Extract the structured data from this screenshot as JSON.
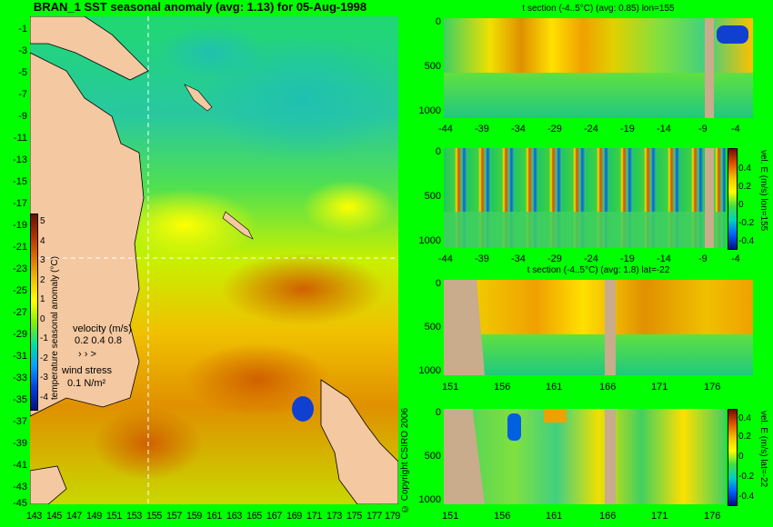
{
  "map": {
    "title": "BRAN_1 SST seasonal anomaly (avg: 1.13) for 05-Aug-1998",
    "y_ticks": [
      "-1",
      "-3",
      "-5",
      "-7",
      "-9",
      "-11",
      "-13",
      "-15",
      "-17",
      "-19",
      "-21",
      "-23",
      "-25",
      "-27",
      "-29",
      "-31",
      "-33",
      "-35",
      "-37",
      "-39",
      "-41",
      "-43",
      "-45"
    ],
    "x_ticks": [
      "143",
      "145",
      "147",
      "149",
      "151",
      "153",
      "155",
      "157",
      "159",
      "161",
      "163",
      "165",
      "167",
      "169",
      "171",
      "173",
      "175",
      "177",
      "179"
    ],
    "colorbar": {
      "label": "temperature seasonal anomaly (°C)",
      "ticks": [
        "5",
        "4",
        "3",
        "2",
        "1",
        "0",
        "-1",
        "-2",
        "-3",
        "-4"
      ]
    },
    "velocity_legend": {
      "title": "velocity (m/s)",
      "scale": "0.2 0.4 0.8"
    },
    "wind_legend": {
      "title": "wind stress",
      "scale": "0.1 N/m²"
    },
    "copyright": "© Copyright CSIRO 2006"
  },
  "sections": [
    {
      "title": "t section (-4..5°C) (avg: 0.85) lon=155",
      "y_ticks": [
        "0",
        "500",
        "1000"
      ],
      "x_ticks": [
        "-44",
        "-39",
        "-34",
        "-29",
        "-24",
        "-19",
        "-14",
        "-9",
        "-4"
      ]
    },
    {
      "title": "",
      "y_ticks": [
        "0",
        "500",
        "1000"
      ],
      "x_ticks": [
        "-44",
        "-39",
        "-34",
        "-29",
        "-24",
        "-19",
        "-14",
        "-9",
        "-4"
      ],
      "colorbar_label": "vel. E (m/s) lon=155",
      "colorbar_ticks": [
        "0.4",
        "0.2",
        "0",
        "-0.2",
        "-0.4"
      ]
    },
    {
      "title": "t section (-4..5°C) (avg: 1.8) lat=-22",
      "y_ticks": [
        "0",
        "500",
        "1000"
      ],
      "x_ticks": [
        "151",
        "156",
        "161",
        "166",
        "171",
        "176"
      ]
    },
    {
      "title": "",
      "y_ticks": [
        "0",
        "500",
        "1000"
      ],
      "x_ticks": [
        "151",
        "156",
        "161",
        "166",
        "171",
        "176"
      ],
      "colorbar_label": "vel. E (m/s) lat=-22",
      "colorbar_ticks": [
        "0.4",
        "0.2",
        "0",
        "-0.2",
        "-0.4"
      ]
    }
  ],
  "colors": {
    "background": "#00ff00",
    "land": "#f4c8a0",
    "section_land": "#c8ac8c"
  }
}
